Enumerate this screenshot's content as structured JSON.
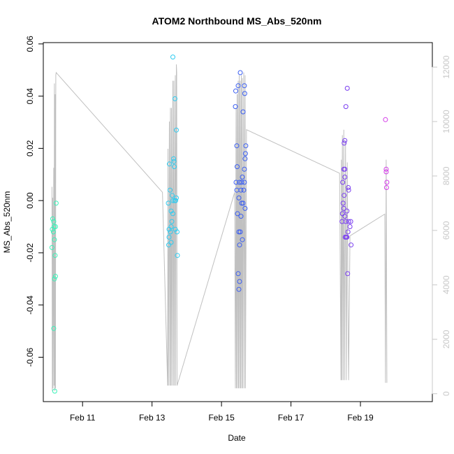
{
  "chart_data": {
    "type": "scatter",
    "title": "ATOM2 Northbound MS_Abs_520nm",
    "xlabel": "Date",
    "ylabel": "MS_Abs_520nm",
    "x_ticks": [
      {
        "value": 11,
        "label": "Feb 11"
      },
      {
        "value": 13,
        "label": "Feb 13"
      },
      {
        "value": 15,
        "label": "Feb 15"
      },
      {
        "value": 17,
        "label": "Feb 17"
      },
      {
        "value": 19,
        "label": "Feb 19"
      }
    ],
    "y_ticks": [
      {
        "value": -0.06,
        "label": "-0.06"
      },
      {
        "value": -0.04,
        "label": "-0.04"
      },
      {
        "value": -0.02,
        "label": "-0.02"
      },
      {
        "value": 0.0,
        "label": "0.00"
      },
      {
        "value": 0.02,
        "label": "0.02"
      },
      {
        "value": 0.04,
        "label": "0.04"
      },
      {
        "value": 0.06,
        "label": "0.06"
      }
    ],
    "y2_ticks": [
      {
        "value": 0,
        "label": "0"
      },
      {
        "value": 2000,
        "label": "2000"
      },
      {
        "value": 4000,
        "label": "4000"
      },
      {
        "value": 6000,
        "label": "6000"
      },
      {
        "value": 8000,
        "label": "8000"
      },
      {
        "value": 10000,
        "label": "10000"
      },
      {
        "value": 12000,
        "label": "12000"
      }
    ],
    "xlim": [
      9.87,
      21.07
    ],
    "ylim": [
      -0.077,
      0.0605
    ],
    "y2lim": [
      -290,
      12900
    ],
    "grid": false,
    "series": [
      {
        "color": "#3bf2b8",
        "points": [
          {
            "x": 10.14,
            "y": -0.007
          },
          {
            "x": 10.16,
            "y": -0.012
          },
          {
            "x": 10.18,
            "y": -0.01
          },
          {
            "x": 10.13,
            "y": -0.011
          },
          {
            "x": 10.17,
            "y": -0.008
          },
          {
            "x": 10.22,
            "y": -0.01
          },
          {
            "x": 10.19,
            "y": -0.015
          },
          {
            "x": 10.24,
            "y": -0.001
          },
          {
            "x": 10.12,
            "y": -0.018
          },
          {
            "x": 10.21,
            "y": -0.021
          },
          {
            "x": 10.22,
            "y": -0.029
          },
          {
            "x": 10.19,
            "y": -0.03
          },
          {
            "x": 10.17,
            "y": -0.049
          },
          {
            "x": 10.2,
            "y": -0.073
          }
        ]
      },
      {
        "color": "#2ecbf0",
        "points": [
          {
            "x": 13.6,
            "y": 0.055
          },
          {
            "x": 13.66,
            "y": 0.039
          },
          {
            "x": 13.7,
            "y": 0.027
          },
          {
            "x": 13.62,
            "y": 0.016
          },
          {
            "x": 13.5,
            "y": 0.014
          },
          {
            "x": 13.63,
            "y": 0.015
          },
          {
            "x": 13.64,
            "y": 0.013
          },
          {
            "x": 13.52,
            "y": 0.004
          },
          {
            "x": 13.58,
            "y": 0.002
          },
          {
            "x": 13.6,
            "y": 0.0
          },
          {
            "x": 13.65,
            "y": 0.0
          },
          {
            "x": 13.68,
            "y": 0.0
          },
          {
            "x": 13.7,
            "y": 0.001
          },
          {
            "x": 13.47,
            "y": -0.001
          },
          {
            "x": 13.55,
            "y": -0.004
          },
          {
            "x": 13.6,
            "y": -0.005
          },
          {
            "x": 13.57,
            "y": -0.008
          },
          {
            "x": 13.55,
            "y": -0.01
          },
          {
            "x": 13.49,
            "y": -0.011
          },
          {
            "x": 13.53,
            "y": -0.012
          },
          {
            "x": 13.67,
            "y": -0.011
          },
          {
            "x": 13.72,
            "y": -0.012
          },
          {
            "x": 13.49,
            "y": -0.014
          },
          {
            "x": 13.55,
            "y": -0.016
          },
          {
            "x": 13.48,
            "y": -0.017
          },
          {
            "x": 13.73,
            "y": -0.021
          }
        ]
      },
      {
        "color": "#3a5ef2",
        "points": [
          {
            "x": 15.54,
            "y": 0.049
          },
          {
            "x": 15.48,
            "y": 0.044
          },
          {
            "x": 15.66,
            "y": 0.044
          },
          {
            "x": 15.41,
            "y": 0.042
          },
          {
            "x": 15.67,
            "y": 0.041
          },
          {
            "x": 15.4,
            "y": 0.036
          },
          {
            "x": 15.62,
            "y": 0.034
          },
          {
            "x": 15.44,
            "y": 0.021
          },
          {
            "x": 15.7,
            "y": 0.021
          },
          {
            "x": 15.69,
            "y": 0.018
          },
          {
            "x": 15.68,
            "y": 0.016
          },
          {
            "x": 15.45,
            "y": 0.013
          },
          {
            "x": 15.66,
            "y": 0.012
          },
          {
            "x": 15.6,
            "y": 0.009
          },
          {
            "x": 15.42,
            "y": 0.007
          },
          {
            "x": 15.52,
            "y": 0.007
          },
          {
            "x": 15.58,
            "y": 0.007
          },
          {
            "x": 15.66,
            "y": 0.007
          },
          {
            "x": 15.44,
            "y": 0.004
          },
          {
            "x": 15.56,
            "y": 0.004
          },
          {
            "x": 15.64,
            "y": 0.004
          },
          {
            "x": 15.5,
            "y": 0.001
          },
          {
            "x": 15.58,
            "y": -0.001
          },
          {
            "x": 15.62,
            "y": -0.001
          },
          {
            "x": 15.68,
            "y": -0.003
          },
          {
            "x": 15.46,
            "y": -0.005
          },
          {
            "x": 15.56,
            "y": -0.006
          },
          {
            "x": 15.5,
            "y": -0.012
          },
          {
            "x": 15.54,
            "y": -0.012
          },
          {
            "x": 15.6,
            "y": -0.015
          },
          {
            "x": 15.52,
            "y": -0.017
          },
          {
            "x": 15.48,
            "y": -0.028
          },
          {
            "x": 15.52,
            "y": -0.031
          },
          {
            "x": 15.5,
            "y": -0.034
          }
        ]
      },
      {
        "color": "#7a3ef0",
        "points": [
          {
            "x": 18.62,
            "y": 0.043
          },
          {
            "x": 18.58,
            "y": 0.036
          },
          {
            "x": 18.55,
            "y": 0.023
          },
          {
            "x": 18.53,
            "y": 0.022
          },
          {
            "x": 18.52,
            "y": 0.012
          },
          {
            "x": 18.55,
            "y": 0.012
          },
          {
            "x": 18.55,
            "y": 0.009
          },
          {
            "x": 18.49,
            "y": 0.007
          },
          {
            "x": 18.65,
            "y": 0.005
          },
          {
            "x": 18.66,
            "y": 0.004
          },
          {
            "x": 18.53,
            "y": 0.002
          },
          {
            "x": 18.5,
            "y": -0.001
          },
          {
            "x": 18.52,
            "y": -0.003
          },
          {
            "x": 18.61,
            "y": -0.004
          },
          {
            "x": 18.48,
            "y": -0.005
          },
          {
            "x": 18.55,
            "y": -0.006
          },
          {
            "x": 18.47,
            "y": -0.008
          },
          {
            "x": 18.58,
            "y": -0.008
          },
          {
            "x": 18.66,
            "y": -0.008
          },
          {
            "x": 18.72,
            "y": -0.008
          },
          {
            "x": 18.7,
            "y": -0.01
          },
          {
            "x": 18.64,
            "y": -0.012
          },
          {
            "x": 18.56,
            "y": -0.014
          },
          {
            "x": 18.59,
            "y": -0.014
          },
          {
            "x": 18.61,
            "y": -0.014
          },
          {
            "x": 18.73,
            "y": -0.017
          },
          {
            "x": 18.63,
            "y": -0.028
          }
        ]
      },
      {
        "color": "#d33be8",
        "points": [
          {
            "x": 19.72,
            "y": 0.031
          },
          {
            "x": 19.74,
            "y": 0.012
          },
          {
            "x": 19.74,
            "y": 0.011
          },
          {
            "x": 19.76,
            "y": 0.007
          },
          {
            "x": 19.75,
            "y": 0.005
          }
        ]
      }
    ],
    "secondary_line": {
      "color": "#c0c0c0",
      "points": [
        [
          10.12,
          7600
        ],
        [
          10.13,
          100
        ],
        [
          10.14,
          7200
        ],
        [
          10.15,
          200
        ],
        [
          10.17,
          8300
        ],
        [
          10.18,
          300
        ],
        [
          10.19,
          11400
        ],
        [
          10.2,
          100
        ],
        [
          10.21,
          11000
        ],
        [
          10.22,
          200
        ],
        [
          10.23,
          11700
        ],
        [
          10.24,
          11800
        ],
        [
          13.3,
          7400
        ],
        [
          13.45,
          300
        ],
        [
          13.46,
          9000
        ],
        [
          13.47,
          300
        ],
        [
          13.5,
          10000
        ],
        [
          13.51,
          300
        ],
        [
          13.53,
          10500
        ],
        [
          13.54,
          300
        ],
        [
          13.56,
          10500
        ],
        [
          13.57,
          300
        ],
        [
          13.6,
          11500
        ],
        [
          13.61,
          300
        ],
        [
          13.63,
          11500
        ],
        [
          13.64,
          300
        ],
        [
          13.67,
          11700
        ],
        [
          13.68,
          300
        ],
        [
          13.7,
          12100
        ],
        [
          13.71,
          11800
        ],
        [
          13.72,
          300
        ],
        [
          15.38,
          7400
        ],
        [
          15.4,
          200
        ],
        [
          15.42,
          10500
        ],
        [
          15.43,
          200
        ],
        [
          15.45,
          11000
        ],
        [
          15.46,
          200
        ],
        [
          15.48,
          11500
        ],
        [
          15.49,
          200
        ],
        [
          15.51,
          11700
        ],
        [
          15.52,
          200
        ],
        [
          15.54,
          11500
        ],
        [
          15.55,
          200
        ],
        [
          15.57,
          11700
        ],
        [
          15.58,
          200
        ],
        [
          15.6,
          11600
        ],
        [
          15.61,
          200
        ],
        [
          15.64,
          11800
        ],
        [
          15.65,
          200
        ],
        [
          15.68,
          11700
        ],
        [
          15.69,
          200
        ],
        [
          15.72,
          9700
        ],
        [
          18.4,
          8100
        ],
        [
          18.44,
          500
        ],
        [
          18.45,
          8600
        ],
        [
          18.46,
          500
        ],
        [
          18.48,
          9500
        ],
        [
          18.5,
          500
        ],
        [
          18.52,
          9700
        ],
        [
          18.54,
          500
        ],
        [
          18.57,
          9300
        ],
        [
          18.59,
          500
        ],
        [
          18.62,
          8500
        ],
        [
          18.64,
          3400
        ],
        [
          18.66,
          500
        ],
        [
          18.7,
          5800
        ],
        [
          19.7,
          6600
        ],
        [
          19.72,
          400
        ],
        [
          19.74,
          8600
        ],
        [
          19.76,
          400
        ]
      ]
    }
  }
}
